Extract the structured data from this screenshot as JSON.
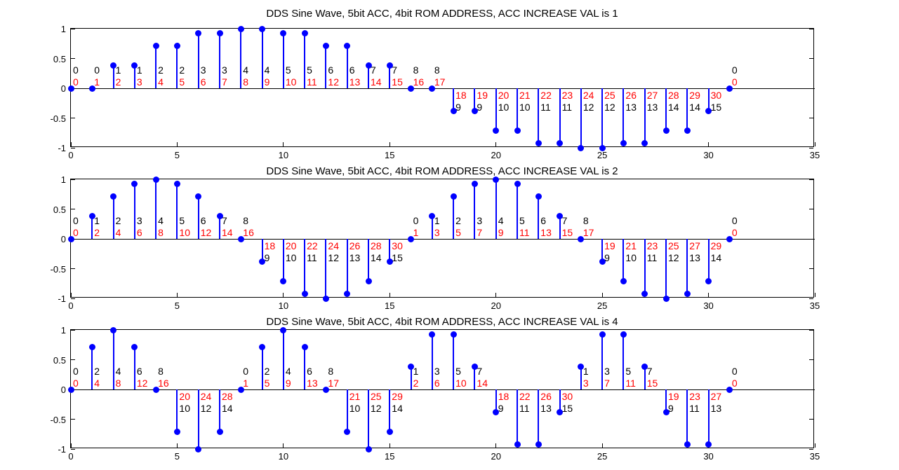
{
  "figure": {
    "background": "#FFFFFF",
    "axis_color": "#000000",
    "stem_color": "#0000FF",
    "marker_color": "#0000FF",
    "rom_label_color": "#000000",
    "acc_label_color": "#FF0000",
    "xlim": [
      0,
      35
    ],
    "ylim": [
      -1,
      1
    ],
    "x_ticks": [
      0,
      5,
      10,
      15,
      20,
      25,
      30,
      35
    ],
    "x_tick_labels": [
      "0",
      "5",
      "10",
      "15",
      "20",
      "25",
      "30",
      "35"
    ],
    "y_ticks": [
      1,
      0.5,
      0,
      -0.5,
      -1
    ],
    "y_tick_labels": [
      "1",
      "0.5",
      "0",
      "-0.5",
      "-1"
    ]
  },
  "chart_data": [
    {
      "type": "stem",
      "title": "DDS Sine Wave, 5bit ACC, 4bit ROM ADDRESS, ACC INCREASE VAL is 1",
      "xlabel": "",
      "ylabel": "",
      "xlim": [
        0,
        35
      ],
      "ylim": [
        -1,
        1
      ],
      "grid": false,
      "x": [
        0,
        1,
        2,
        3,
        4,
        5,
        6,
        7,
        8,
        9,
        10,
        11,
        12,
        13,
        14,
        15,
        16,
        17,
        18,
        19,
        20,
        21,
        22,
        23,
        24,
        25,
        26,
        27,
        28,
        29,
        30,
        31
      ],
      "values": [
        0,
        0,
        0.3827,
        0.3827,
        0.7071,
        0.7071,
        0.9239,
        0.9239,
        1,
        1,
        0.9239,
        0.9239,
        0.7071,
        0.7071,
        0.3827,
        0.3827,
        0,
        0,
        -0.3827,
        -0.3827,
        -0.7071,
        -0.7071,
        -0.9239,
        -0.9239,
        -1,
        -1,
        -0.9239,
        -0.9239,
        -0.7071,
        -0.7071,
        -0.3827,
        0
      ],
      "rom_address_labels": [
        0,
        0,
        1,
        1,
        2,
        2,
        3,
        3,
        4,
        4,
        5,
        5,
        6,
        6,
        7,
        7,
        8,
        8,
        9,
        9,
        10,
        10,
        11,
        11,
        12,
        12,
        13,
        13,
        14,
        14,
        15,
        0
      ],
      "acc_value_labels": [
        0,
        1,
        2,
        3,
        4,
        5,
        6,
        7,
        8,
        9,
        10,
        11,
        12,
        13,
        14,
        15,
        16,
        17,
        18,
        19,
        20,
        21,
        22,
        23,
        24,
        25,
        26,
        27,
        28,
        29,
        30,
        0
      ]
    },
    {
      "type": "stem",
      "title": "DDS Sine Wave, 5bit ACC, 4bit ROM ADDRESS, ACC INCREASE VAL is 2",
      "xlabel": "",
      "ylabel": "",
      "xlim": [
        0,
        35
      ],
      "ylim": [
        -1,
        1
      ],
      "grid": false,
      "x": [
        0,
        1,
        2,
        3,
        4,
        5,
        6,
        7,
        8,
        9,
        10,
        11,
        12,
        13,
        14,
        15,
        16,
        17,
        18,
        19,
        20,
        21,
        22,
        23,
        24,
        25,
        26,
        27,
        28,
        29,
        30,
        31
      ],
      "values": [
        0,
        0.3827,
        0.7071,
        0.9239,
        1,
        0.9239,
        0.7071,
        0.3827,
        0,
        -0.3827,
        -0.7071,
        -0.9239,
        -1,
        -0.9239,
        -0.7071,
        -0.3827,
        0,
        0.3827,
        0.7071,
        0.9239,
        1,
        0.9239,
        0.7071,
        0.3827,
        0,
        -0.3827,
        -0.7071,
        -0.9239,
        -1,
        -0.9239,
        -0.7071,
        0
      ],
      "rom_address_labels": [
        0,
        1,
        2,
        3,
        4,
        5,
        6,
        7,
        8,
        9,
        10,
        11,
        12,
        13,
        14,
        15,
        0,
        1,
        2,
        3,
        4,
        5,
        6,
        7,
        8,
        9,
        10,
        11,
        12,
        13,
        14,
        0
      ],
      "acc_value_labels": [
        0,
        2,
        4,
        6,
        8,
        10,
        12,
        14,
        16,
        18,
        20,
        22,
        24,
        26,
        28,
        30,
        1,
        3,
        5,
        7,
        9,
        11,
        13,
        15,
        17,
        19,
        21,
        23,
        25,
        27,
        29,
        0
      ]
    },
    {
      "type": "stem",
      "title": "DDS Sine Wave, 5bit ACC, 4bit ROM ADDRESS, ACC INCREASE VAL is 4",
      "xlabel": "",
      "ylabel": "",
      "xlim": [
        0,
        35
      ],
      "ylim": [
        -1,
        1
      ],
      "grid": false,
      "x": [
        0,
        1,
        2,
        3,
        4,
        5,
        6,
        7,
        8,
        9,
        10,
        11,
        12,
        13,
        14,
        15,
        16,
        17,
        18,
        19,
        20,
        21,
        22,
        23,
        24,
        25,
        26,
        27,
        28,
        29,
        30,
        31
      ],
      "values": [
        0,
        0.7071,
        1,
        0.7071,
        0,
        -0.7071,
        -1,
        -0.7071,
        0,
        0.7071,
        1,
        0.7071,
        0,
        -0.7071,
        -1,
        -0.7071,
        0.3827,
        0.9239,
        0.9239,
        0.3827,
        -0.3827,
        -0.9239,
        -0.9239,
        -0.3827,
        0.3827,
        0.9239,
        0.9239,
        0.3827,
        -0.3827,
        -0.9239,
        -0.9239,
        0
      ],
      "rom_address_labels": [
        0,
        2,
        4,
        6,
        8,
        10,
        12,
        14,
        0,
        2,
        4,
        6,
        8,
        10,
        12,
        14,
        1,
        3,
        5,
        7,
        9,
        11,
        13,
        15,
        1,
        3,
        5,
        7,
        9,
        11,
        13,
        0
      ],
      "acc_value_labels": [
        0,
        4,
        8,
        12,
        16,
        20,
        24,
        28,
        1,
        5,
        9,
        13,
        17,
        21,
        25,
        29,
        2,
        6,
        10,
        14,
        18,
        22,
        26,
        30,
        3,
        7,
        11,
        15,
        19,
        23,
        27,
        0
      ]
    }
  ]
}
